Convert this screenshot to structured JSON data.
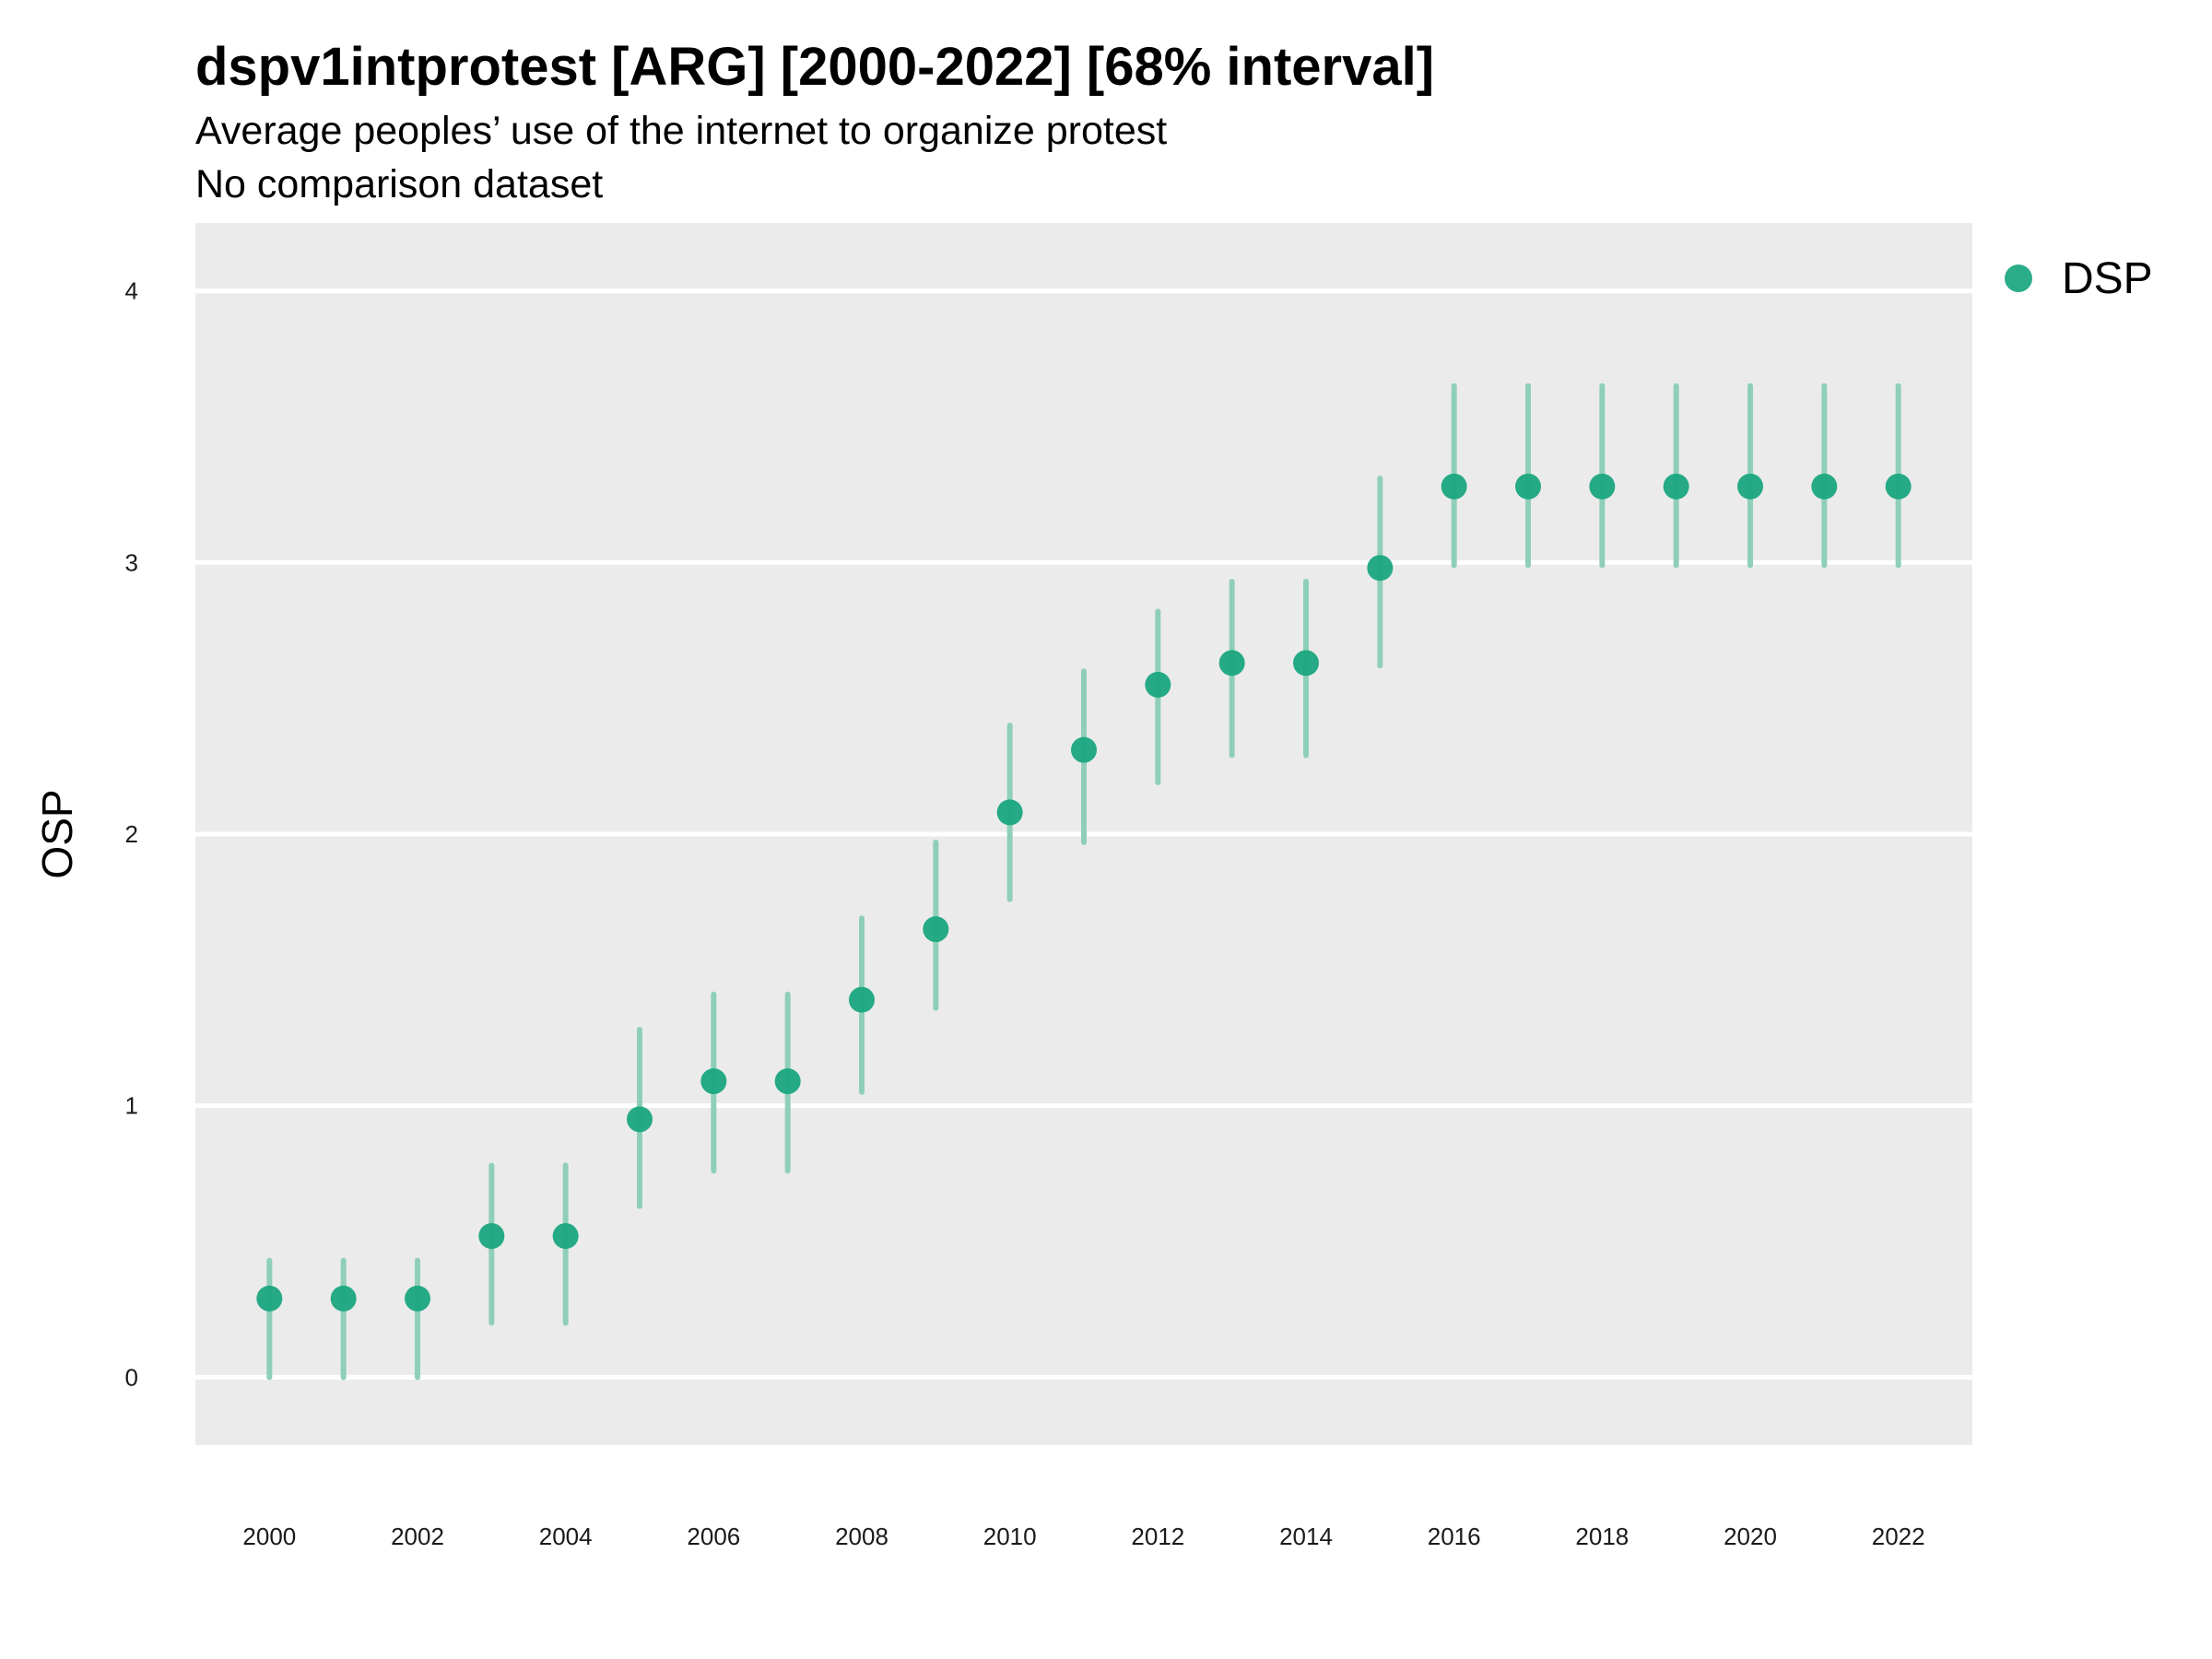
{
  "chart_data": {
    "type": "scatter",
    "title": "dspv1intprotest [ARG] [2000-2022] [68% interval]",
    "subtitle": "Average peoples’ use of the internet to organize protest",
    "subtitle2": "No comparison dataset",
    "xlabel": "",
    "ylabel": "OSP",
    "xlim": [
      1999,
      2023
    ],
    "ylim": [
      -0.25,
      4.25
    ],
    "x_ticks": [
      2000,
      2002,
      2004,
      2006,
      2008,
      2010,
      2012,
      2014,
      2016,
      2018,
      2020,
      2022
    ],
    "y_ticks": [
      0,
      1,
      2,
      3,
      4
    ],
    "grid": true,
    "legend_position": "right",
    "colors": {
      "point": "#1aa67f",
      "interval": "#8fcfb9",
      "panel": "#ebebeb",
      "grid": "#ffffff"
    },
    "series": [
      {
        "name": "DSP",
        "x": [
          2000,
          2001,
          2002,
          2003,
          2004,
          2005,
          2006,
          2007,
          2008,
          2009,
          2010,
          2011,
          2012,
          2013,
          2014,
          2015,
          2016,
          2017,
          2018,
          2019,
          2020,
          2021,
          2022
        ],
        "y": [
          0.29,
          0.29,
          0.29,
          0.52,
          0.52,
          0.95,
          1.09,
          1.09,
          1.39,
          1.65,
          2.08,
          2.31,
          2.55,
          2.63,
          2.63,
          2.98,
          3.28,
          3.28,
          3.28,
          3.28,
          3.28,
          3.28,
          3.28
        ],
        "lower": [
          0.0,
          0.0,
          0.0,
          0.2,
          0.2,
          0.63,
          0.76,
          0.76,
          1.05,
          1.36,
          1.76,
          1.97,
          2.19,
          2.29,
          2.29,
          2.62,
          2.99,
          2.99,
          2.99,
          2.99,
          2.99,
          2.99,
          2.99
        ],
        "upper": [
          0.43,
          0.43,
          0.43,
          0.78,
          0.78,
          1.28,
          1.41,
          1.41,
          1.69,
          1.97,
          2.4,
          2.6,
          2.82,
          2.93,
          2.93,
          3.31,
          3.65,
          3.65,
          3.65,
          3.65,
          3.65,
          3.65,
          3.65
        ]
      }
    ]
  }
}
